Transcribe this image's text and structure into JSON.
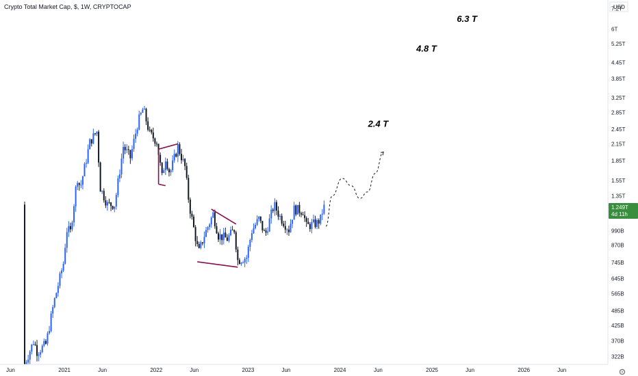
{
  "title": "Crypto Total Market Cap, $, 1W, CRYPTOCAP",
  "colors": {
    "up": "#2962ff",
    "down": "#131722",
    "pattern": "#880e4f",
    "badge": "#388e3c",
    "axis": "#131722",
    "dashed": "#131722"
  },
  "price_badge": {
    "value": "1.249T",
    "countdown": "4d 11h"
  },
  "chart_data": {
    "type": "candlestick",
    "title": "Crypto Total Market Cap, $, 1W, CRYPTOCAP",
    "currency": "USD",
    "y_scale": "log",
    "ylim": [
      300000000000,
      7400000000000
    ],
    "y_ticks": [
      {
        "label": "7.2T",
        "value": 7200000000000.0
      },
      {
        "label": "6T",
        "value": 6000000000000.0
      },
      {
        "label": "5.25T",
        "value": 5250000000000.0
      },
      {
        "label": "4.45T",
        "value": 4450000000000.0
      },
      {
        "label": "3.85T",
        "value": 3850000000000.0
      },
      {
        "label": "3.25T",
        "value": 3250000000000.0
      },
      {
        "label": "2.85T",
        "value": 2850000000000.0
      },
      {
        "label": "2.45T",
        "value": 2450000000000.0
      },
      {
        "label": "2.15T",
        "value": 2150000000000.0
      },
      {
        "label": "1.85T",
        "value": 1850000000000.0
      },
      {
        "label": "1.55T",
        "value": 1550000000000.0
      },
      {
        "label": "1.35T",
        "value": 1350000000000.0
      },
      {
        "label": "990B",
        "value": 990000000000.0
      },
      {
        "label": "870B",
        "value": 870000000000.0
      },
      {
        "label": "745B",
        "value": 745000000000.0
      },
      {
        "label": "645B",
        "value": 645000000000.0
      },
      {
        "label": "565B",
        "value": 565000000000.0
      },
      {
        "label": "485B",
        "value": 485000000000.0
      },
      {
        "label": "425B",
        "value": 425000000000.0
      },
      {
        "label": "370B",
        "value": 370000000000.0
      },
      {
        "label": "322B",
        "value": 322000000000.0
      }
    ],
    "x_ticks": [
      {
        "label": "Jun",
        "date": "2020-06-01"
      },
      {
        "label": "2021",
        "date": "2021-01-01"
      },
      {
        "label": "Jun",
        "date": "2021-06-01"
      },
      {
        "label": "2022",
        "date": "2022-01-01"
      },
      {
        "label": "Jun",
        "date": "2022-06-01"
      },
      {
        "label": "2023",
        "date": "2023-01-01"
      },
      {
        "label": "Jun",
        "date": "2023-06-01"
      },
      {
        "label": "2024",
        "date": "2024-01-01"
      },
      {
        "label": "Jun",
        "date": "2024-06-01"
      },
      {
        "label": "2025",
        "date": "2025-01-01"
      },
      {
        "label": "Jun",
        "date": "2025-06-01"
      },
      {
        "label": "2026",
        "date": "2026-01-01"
      },
      {
        "label": "Jun",
        "date": "2026-06-01"
      }
    ],
    "xlim": [
      "2020-04-20",
      "2026-12-01"
    ],
    "price_path": [
      {
        "date": "2020-07-27",
        "value": 300000000000.0
      },
      {
        "date": "2020-09-01",
        "value": 370000000000.0
      },
      {
        "date": "2020-09-15",
        "value": 335000000000.0
      },
      {
        "date": "2020-10-20",
        "value": 360000000000.0
      },
      {
        "date": "2020-11-20",
        "value": 520000000000.0
      },
      {
        "date": "2020-12-28",
        "value": 740000000000.0
      },
      {
        "date": "2021-01-10",
        "value": 1000000000000.0
      },
      {
        "date": "2021-01-25",
        "value": 980000000000.0
      },
      {
        "date": "2021-02-21",
        "value": 1600000000000.0
      },
      {
        "date": "2021-03-05",
        "value": 1450000000000.0
      },
      {
        "date": "2021-04-13",
        "value": 2200000000000.0
      },
      {
        "date": "2021-05-10",
        "value": 2400000000000.0
      },
      {
        "date": "2021-05-24",
        "value": 1450000000000.0
      },
      {
        "date": "2021-06-21",
        "value": 1250000000000.0
      },
      {
        "date": "2021-07-20",
        "value": 1250000000000.0
      },
      {
        "date": "2021-08-23",
        "value": 2100000000000.0
      },
      {
        "date": "2021-09-20",
        "value": 1900000000000.0
      },
      {
        "date": "2021-10-20",
        "value": 2600000000000.0
      },
      {
        "date": "2021-11-10",
        "value": 2950000000000.0
      },
      {
        "date": "2021-12-06",
        "value": 2350000000000.0
      },
      {
        "date": "2022-01-03",
        "value": 2200000000000.0
      },
      {
        "date": "2022-01-24",
        "value": 1600000000000.0
      },
      {
        "date": "2022-02-07",
        "value": 1900000000000.0
      },
      {
        "date": "2022-02-24",
        "value": 1650000000000.0
      },
      {
        "date": "2022-03-28",
        "value": 2100000000000.0
      },
      {
        "date": "2022-04-25",
        "value": 1750000000000.0
      },
      {
        "date": "2022-05-12",
        "value": 1250000000000.0
      },
      {
        "date": "2022-06-18",
        "value": 810000000000.0
      },
      {
        "date": "2022-07-11",
        "value": 950000000000.0
      },
      {
        "date": "2022-08-15",
        "value": 1150000000000.0
      },
      {
        "date": "2022-09-05",
        "value": 950000000000.0
      },
      {
        "date": "2022-10-10",
        "value": 920000000000.0
      },
      {
        "date": "2022-11-07",
        "value": 1000000000000.0
      },
      {
        "date": "2022-11-21",
        "value": 760000000000.0
      },
      {
        "date": "2022-12-26",
        "value": 780000000000.0
      },
      {
        "date": "2023-01-16",
        "value": 990000000000.0
      },
      {
        "date": "2023-02-13",
        "value": 1100000000000.0
      },
      {
        "date": "2023-03-10",
        "value": 950000000000.0
      },
      {
        "date": "2023-04-14",
        "value": 1250000000000.0
      },
      {
        "date": "2023-05-08",
        "value": 1120000000000.0
      },
      {
        "date": "2023-06-12",
        "value": 1000000000000.0
      },
      {
        "date": "2023-07-03",
        "value": 1200000000000.0
      },
      {
        "date": "2023-08-07",
        "value": 1180000000000.0
      },
      {
        "date": "2023-08-21",
        "value": 1030000000000.0
      },
      {
        "date": "2023-10-02",
        "value": 1060000000000.0
      },
      {
        "date": "2023-10-16",
        "value": 1100000000000.0
      },
      {
        "date": "2023-10-30",
        "value": 1249000000000.0
      }
    ],
    "projection_path": [
      {
        "date": "2023-11-06",
        "value": 1030000000000.0
      },
      {
        "date": "2023-12-01",
        "value": 1350000000000.0
      },
      {
        "date": "2024-01-10",
        "value": 1580000000000.0
      },
      {
        "date": "2024-02-15",
        "value": 1480000000000.0
      },
      {
        "date": "2024-03-20",
        "value": 1320000000000.0
      },
      {
        "date": "2024-04-20",
        "value": 1400000000000.0
      },
      {
        "date": "2024-05-20",
        "value": 1650000000000.0
      },
      {
        "date": "2024-06-22",
        "value": 2000000000000.0
      }
    ],
    "patterns": [
      {
        "points": [
          {
            "date": "2022-01-10",
            "value": 1500000000000.0
          },
          {
            "date": "2022-01-10",
            "value": 2050000000000.0
          },
          {
            "date": "2022-03-28",
            "value": 2150000000000.0
          }
        ]
      },
      {
        "points": [
          {
            "date": "2022-01-10",
            "value": 1500000000000.0
          },
          {
            "date": "2022-02-07",
            "value": 1480000000000.0
          }
        ]
      },
      {
        "points": [
          {
            "date": "2022-06-13",
            "value": 750000000000.0
          },
          {
            "date": "2022-11-21",
            "value": 715000000000.0
          }
        ]
      },
      {
        "points": [
          {
            "date": "2022-08-08",
            "value": 1200000000000.0
          },
          {
            "date": "2022-11-14",
            "value": 1050000000000.0
          }
        ]
      }
    ],
    "annotations": [
      {
        "text": "2.4 T",
        "date": "2024-06-01",
        "value": 2500000000000.0
      },
      {
        "text": "4.8 T",
        "date": "2024-12-10",
        "value": 4900000000000.0
      },
      {
        "text": "6.3 T",
        "date": "2025-05-20",
        "value": 6400000000000.0
      }
    ]
  }
}
